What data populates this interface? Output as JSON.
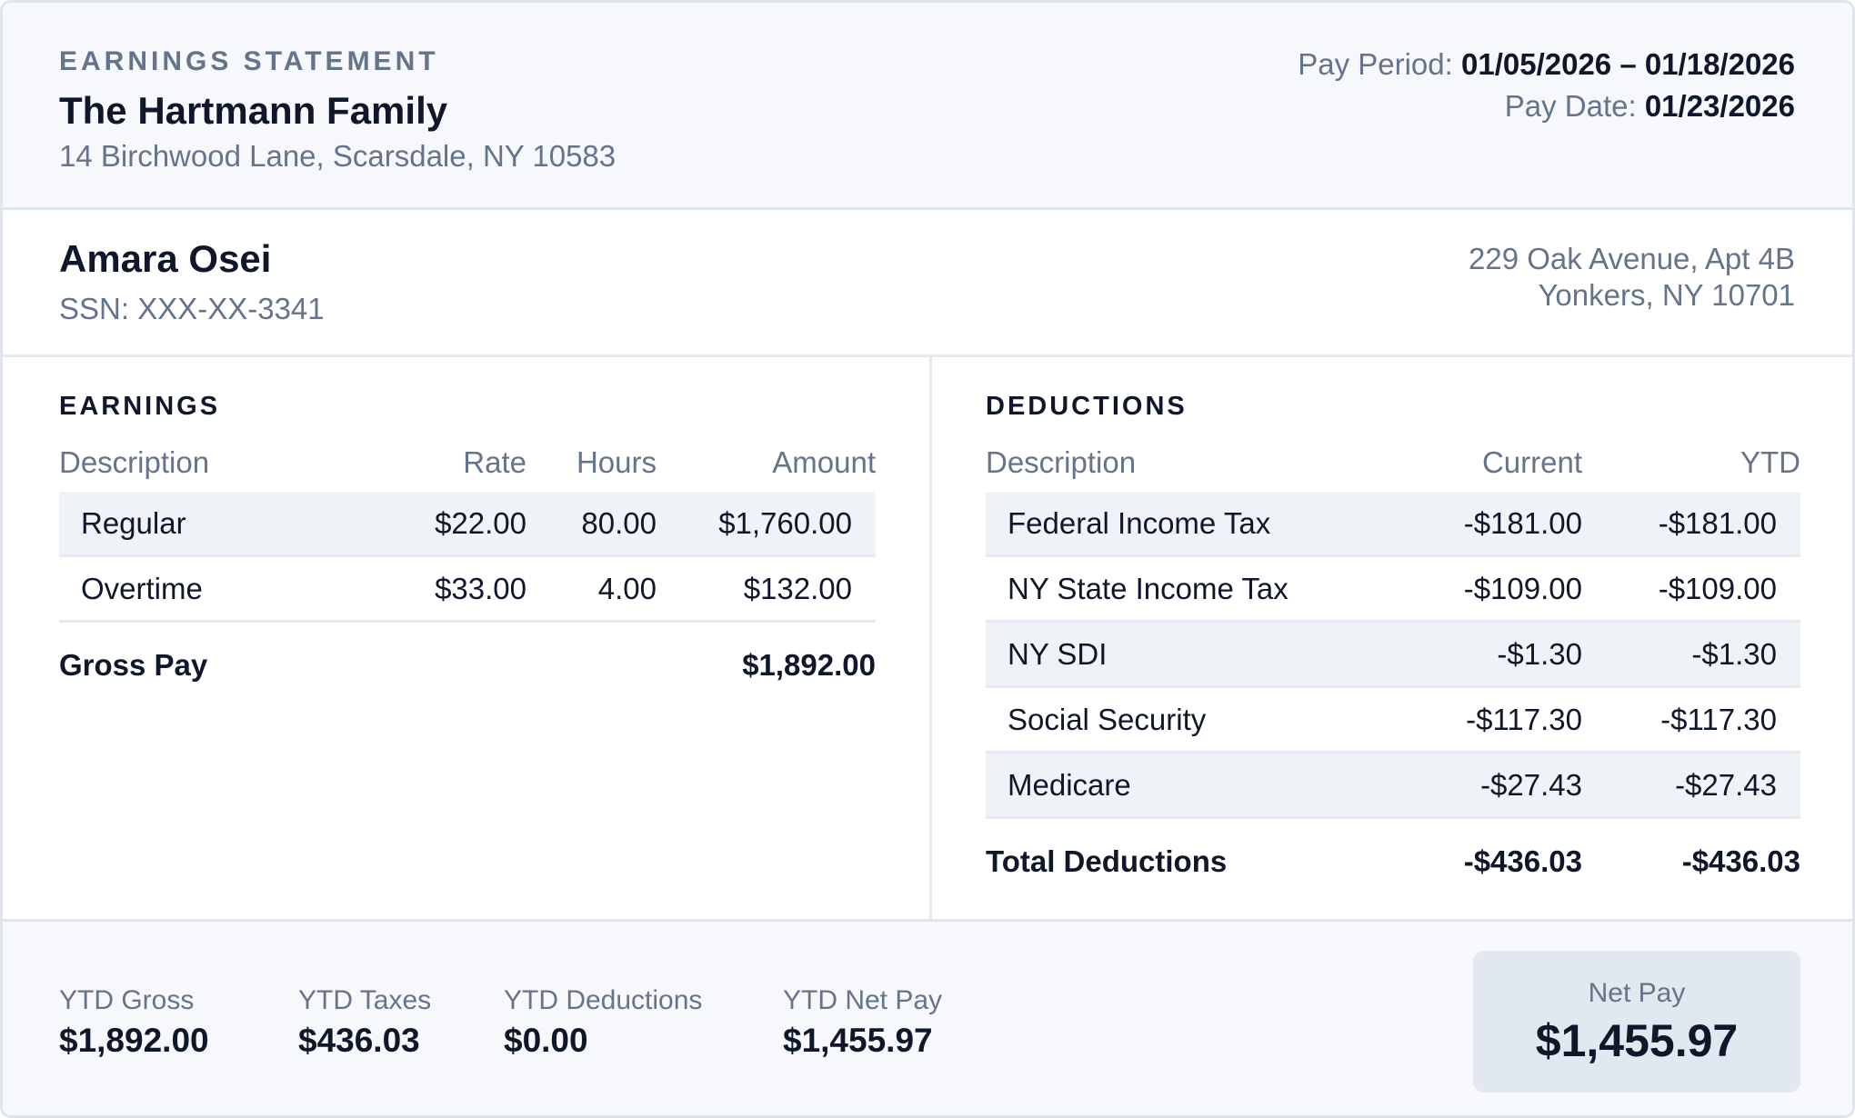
{
  "header": {
    "eyebrow": "EARNINGS STATEMENT",
    "employer_name": "The Hartmann Family",
    "employer_address": "14 Birchwood Lane, Scarsdale, NY 10583",
    "pay_period_label": "Pay Period:",
    "pay_period_value": "01/05/2026 – 01/18/2026",
    "pay_date_label": "Pay Date:",
    "pay_date_value": "01/23/2026"
  },
  "employee": {
    "name": "Amara Osei",
    "ssn": "SSN: XXX-XX-3341",
    "address_line1": "229 Oak Avenue, Apt 4B",
    "address_line2": "Yonkers, NY 10701"
  },
  "earnings": {
    "title": "EARNINGS",
    "columns": [
      "Description",
      "Rate",
      "Hours",
      "Amount"
    ],
    "rows": [
      {
        "description": "Regular",
        "rate": "$22.00",
        "hours": "80.00",
        "amount": "$1,760.00"
      },
      {
        "description": "Overtime",
        "rate": "$33.00",
        "hours": "4.00",
        "amount": "$132.00"
      }
    ],
    "total_label": "Gross Pay",
    "total_value": "$1,892.00"
  },
  "deductions": {
    "title": "DEDUCTIONS",
    "columns": [
      "Description",
      "Current",
      "YTD"
    ],
    "rows": [
      {
        "description": "Federal Income Tax",
        "current": "-$181.00",
        "ytd": "-$181.00"
      },
      {
        "description": "NY State Income Tax",
        "current": "-$109.00",
        "ytd": "-$109.00"
      },
      {
        "description": "NY SDI",
        "current": "-$1.30",
        "ytd": "-$1.30"
      },
      {
        "description": "Social Security",
        "current": "-$117.30",
        "ytd": "-$117.30"
      },
      {
        "description": "Medicare",
        "current": "-$27.43",
        "ytd": "-$27.43"
      }
    ],
    "total_label": "Total Deductions",
    "total_current": "-$436.03",
    "total_ytd": "-$436.03"
  },
  "footer": {
    "ytd": [
      {
        "label": "YTD Gross",
        "value": "$1,892.00"
      },
      {
        "label": "YTD Taxes",
        "value": "$436.03"
      },
      {
        "label": "YTD Deductions",
        "value": "$0.00"
      },
      {
        "label": "YTD Net Pay",
        "value": "$1,455.97"
      }
    ],
    "net_pay_label": "Net Pay",
    "net_pay_value": "$1,455.97"
  }
}
